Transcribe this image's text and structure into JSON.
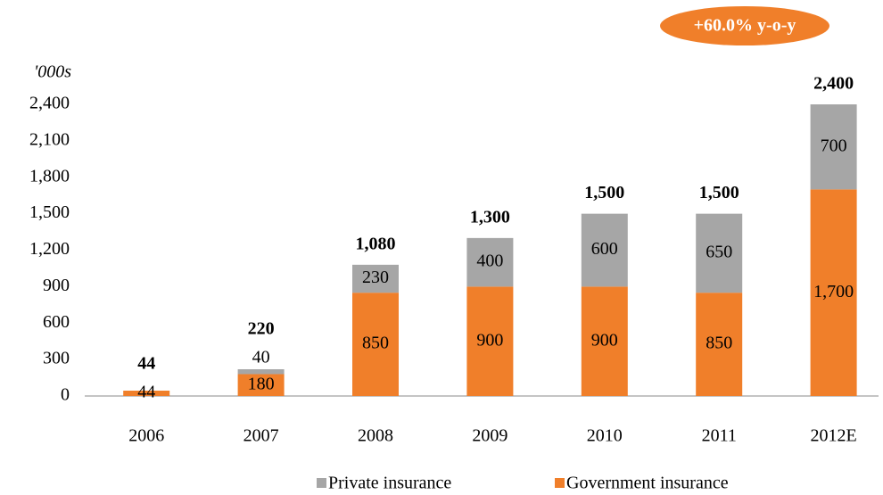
{
  "chart_data": {
    "type": "stacked_bar",
    "annotation": "+60.0% y-o-y",
    "y_axis_label": "'000s",
    "categories": [
      "2006",
      "2007",
      "2008",
      "2009",
      "2010",
      "2011",
      "2012E"
    ],
    "series": [
      {
        "name": "Government insurance",
        "color": "#f07f2a",
        "values": [
          44,
          180,
          850,
          900,
          900,
          850,
          1700
        ],
        "value_labels": [
          "44",
          "180",
          "850",
          "900",
          "900",
          "850",
          "1,700"
        ]
      },
      {
        "name": "Private insurance",
        "color": "#a6a6a6",
        "values": [
          null,
          40,
          230,
          400,
          600,
          650,
          700
        ]
      }
    ],
    "totals": [
      44,
      220,
      1080,
      1300,
      1500,
      1500,
      2400
    ],
    "total_labels": [
      "44",
      "220",
      "1,080",
      "1,300",
      "1,500",
      "1,500",
      "2,400"
    ],
    "ylim": [
      0,
      2400
    ],
    "yticks": [
      0,
      300,
      600,
      900,
      {
        "value": 1200,
        "label": "1,200"
      },
      {
        "value": 1500,
        "label": "1,500"
      },
      {
        "value": 1800,
        "label": "1,800"
      },
      {
        "value": 2100,
        "label": "2,100"
      },
      {
        "value": 2400,
        "label": "2,400"
      }
    ],
    "legend": "bottom"
  }
}
